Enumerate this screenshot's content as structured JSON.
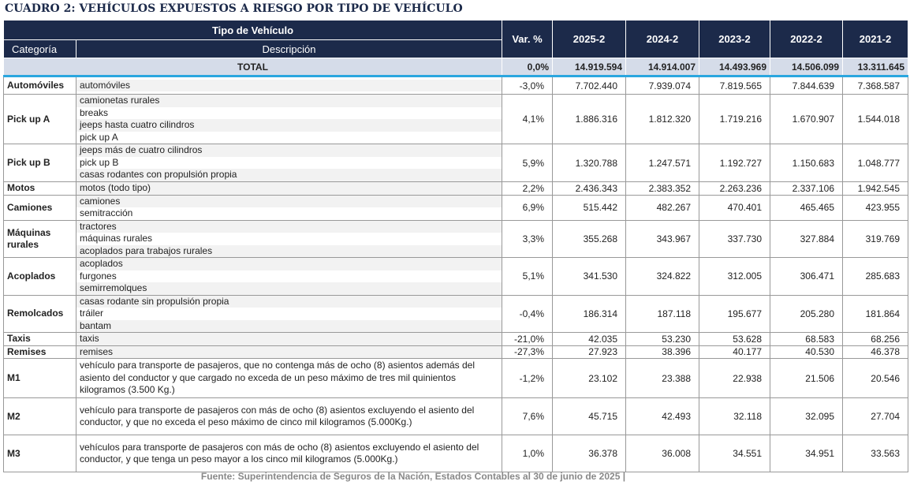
{
  "title": "CUADRO 2: VEHÍCULOS EXPUESTOS A RIESGO POR TIPO DE VEHÍCULO",
  "header": {
    "tipo": "Tipo de Vehículo",
    "categoria": "Categoría",
    "descripcion": "Descripción",
    "var": "Var. %",
    "years": [
      "2025-2",
      "2024-2",
      "2023-2",
      "2022-2",
      "2021-2"
    ]
  },
  "total": {
    "label": "TOTAL",
    "var": "0,0%",
    "values": [
      "14.919.594",
      "14.914.007",
      "14.493.969",
      "14.506.099",
      "13.311.645"
    ]
  },
  "rows": [
    {
      "cat": "Automóviles",
      "desc": [
        "automóviles"
      ],
      "var": "-3,0%",
      "values": [
        "7.702.440",
        "7.939.074",
        "7.819.565",
        "7.844.639",
        "7.368.587"
      ]
    },
    {
      "cat": "Pick up A",
      "desc": [
        "camionetas rurales",
        "breaks",
        "jeeps hasta cuatro cilindros",
        "pick up A"
      ],
      "var": "4,1%",
      "values": [
        "1.886.316",
        "1.812.320",
        "1.719.216",
        "1.670.907",
        "1.544.018"
      ]
    },
    {
      "cat": "Pick up B",
      "desc": [
        "jeeps más de cuatro cilindros",
        "pick up B",
        "casas rodantes con propulsión propia"
      ],
      "var": "5,9%",
      "values": [
        "1.320.788",
        "1.247.571",
        "1.192.727",
        "1.150.683",
        "1.048.777"
      ]
    },
    {
      "cat": "Motos",
      "desc": [
        "motos (todo tipo)"
      ],
      "var": "2,2%",
      "values": [
        "2.436.343",
        "2.383.352",
        "2.263.236",
        "2.337.106",
        "1.942.545"
      ]
    },
    {
      "cat": "Camiones",
      "desc": [
        "camiones",
        "semitracción"
      ],
      "var": "6,9%",
      "values": [
        "515.442",
        "482.267",
        "470.401",
        "465.465",
        "423.955"
      ]
    },
    {
      "cat": "Máquinas rurales",
      "desc": [
        "tractores",
        "máquinas rurales",
        "acoplados para trabajos rurales"
      ],
      "var": "3,3%",
      "values": [
        "355.268",
        "343.967",
        "337.730",
        "327.884",
        "319.769"
      ]
    },
    {
      "cat": "Acoplados",
      "desc": [
        "acoplados",
        "furgones",
        "semirremolques"
      ],
      "var": "5,1%",
      "values": [
        "341.530",
        "324.822",
        "312.005",
        "306.471",
        "285.683"
      ]
    },
    {
      "cat": "Remolcados",
      "desc": [
        "casas rodante sin propulsión propia",
        "tráiler",
        "bantam"
      ],
      "var": "-0,4%",
      "values": [
        "186.314",
        "187.118",
        "195.677",
        "205.280",
        "181.864"
      ]
    },
    {
      "cat": "Taxis",
      "desc": [
        "taxis"
      ],
      "var": "-21,0%",
      "values": [
        "42.035",
        "53.230",
        "53.628",
        "68.583",
        "68.256"
      ]
    },
    {
      "cat": "Remises",
      "desc": [
        "remises"
      ],
      "var": "-27,3%",
      "values": [
        "27.923",
        "38.396",
        "40.177",
        "40.530",
        "46.378"
      ]
    },
    {
      "cat": "M1",
      "para": "vehículo para transporte de pasajeros, que no contenga más de ocho (8) asientos además del asiento del conductor y que cargado no exceda de un peso máximo de tres mil quinientos kilogramos (3.500 Kg.)",
      "var": "-1,2%",
      "values": [
        "23.102",
        "23.388",
        "22.938",
        "21.506",
        "20.546"
      ]
    },
    {
      "cat": "M2",
      "para": "vehículo para transporte de pasajeros con más de ocho (8) asientos excluyendo el asiento del conductor, y que no exceda el peso máximo de cinco mil kilogramos (5.000Kg.)",
      "var": "7,6%",
      "values": [
        "45.715",
        "42.493",
        "32.118",
        "32.095",
        "27.704"
      ]
    },
    {
      "cat": "M3",
      "para": "vehículos para transporte de pasajeros con más de ocho (8) asientos excluyendo el asiento del conductor, y que tenga un peso mayor a los cinco mil kilogramos (5.000Kg.)",
      "var": "1,0%",
      "values": [
        "36.378",
        "36.008",
        "34.551",
        "34.951",
        "33.563"
      ]
    }
  ],
  "source": "Fuente: Superintendencia de Seguros de la Nación, Estados Contables al 30 de junio de 2025 |",
  "colors": {
    "header_bg": "#1c2a4a",
    "total_bg": "#d5dce9",
    "accent_line": "#2aa6df"
  }
}
